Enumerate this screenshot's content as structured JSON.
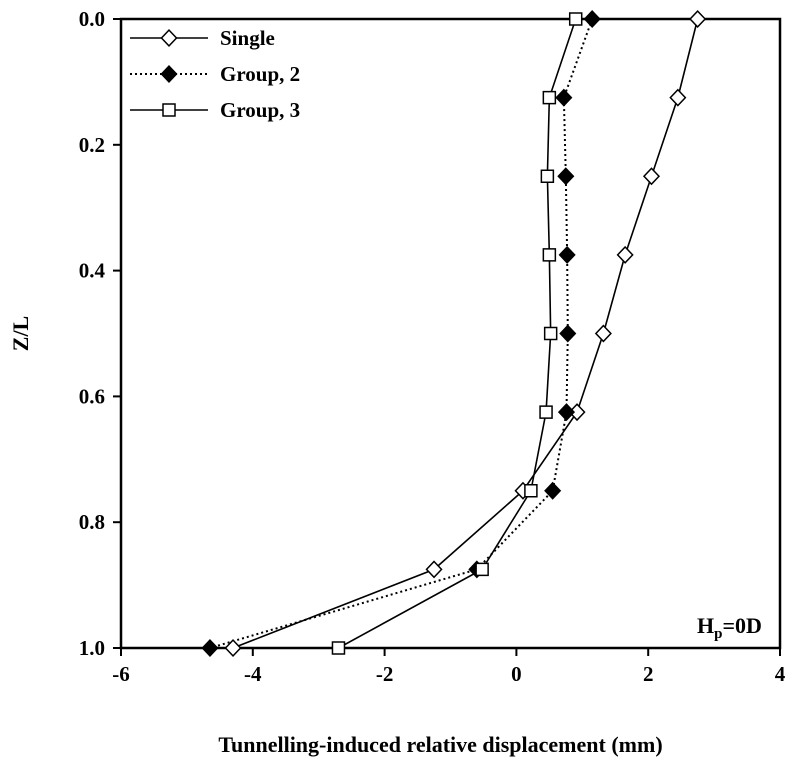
{
  "chart_data": {
    "type": "line",
    "xlabel": "Tunnelling-induced relative displacement (mm)",
    "ylabel": "Z/L",
    "xlim": [
      -6,
      4
    ],
    "ylim": [
      0.0,
      1.0
    ],
    "y_inverted": true,
    "x_ticks": [
      "-6",
      "-4",
      "-2",
      "0",
      "2",
      "4"
    ],
    "y_ticks": [
      "0.0",
      "0.2",
      "0.4",
      "0.6",
      "0.8",
      "1.0"
    ],
    "grid": false,
    "legend_position": "top-left",
    "annotation": {
      "main": "H",
      "sub": "p",
      "rest": "=0D"
    },
    "series": [
      {
        "name": "Single",
        "line": "solid",
        "marker": "diamond-open",
        "points": [
          [
            2.75,
            0.0
          ],
          [
            2.45,
            0.125
          ],
          [
            2.05,
            0.25
          ],
          [
            1.65,
            0.375
          ],
          [
            1.32,
            0.5
          ],
          [
            0.92,
            0.625
          ],
          [
            0.1,
            0.75
          ],
          [
            -1.25,
            0.875
          ],
          [
            -4.3,
            1.0
          ]
        ]
      },
      {
        "name": "Group, 2",
        "line": "dotted",
        "marker": "diamond-filled",
        "points": [
          [
            1.15,
            0.0
          ],
          [
            0.72,
            0.125
          ],
          [
            0.75,
            0.25
          ],
          [
            0.77,
            0.375
          ],
          [
            0.78,
            0.5
          ],
          [
            0.76,
            0.625
          ],
          [
            0.55,
            0.75
          ],
          [
            -0.6,
            0.875
          ],
          [
            -4.65,
            1.0
          ]
        ]
      },
      {
        "name": "Group, 3",
        "line": "solid",
        "marker": "square-open",
        "points": [
          [
            0.9,
            0.0
          ],
          [
            0.5,
            0.125
          ],
          [
            0.47,
            0.25
          ],
          [
            0.5,
            0.375
          ],
          [
            0.52,
            0.5
          ],
          [
            0.45,
            0.625
          ],
          [
            0.22,
            0.75
          ],
          [
            -0.52,
            0.875
          ],
          [
            -2.7,
            1.0
          ]
        ]
      }
    ]
  }
}
